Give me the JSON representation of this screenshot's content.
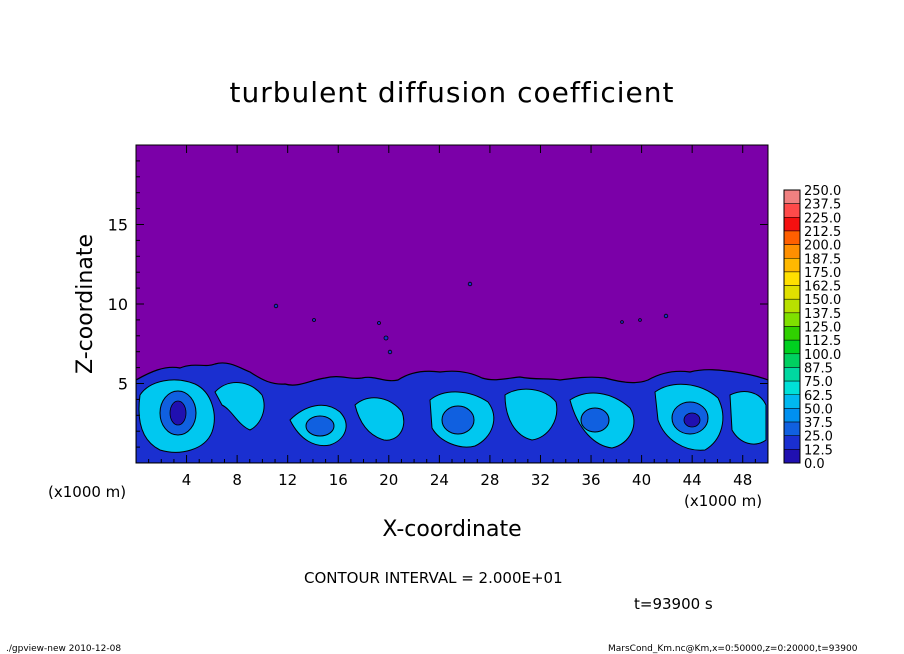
{
  "chart_data": {
    "type": "heatmap",
    "title": "turbulent diffusion coefficient",
    "xlabel": "X-coordinate",
    "ylabel": "Z-coordinate",
    "x_unit": "(x1000 m)",
    "x_unit_right": "(x1000 m)",
    "xlim": [
      0,
      50
    ],
    "ylim": [
      0,
      20
    ],
    "x_ticks": [
      "4",
      "8",
      "12",
      "16",
      "20",
      "24",
      "28",
      "32",
      "36",
      "40",
      "44",
      "48"
    ],
    "y_ticks": [
      "5",
      "10",
      "15"
    ],
    "x_tick_values": [
      4,
      8,
      12,
      16,
      20,
      24,
      28,
      32,
      36,
      40,
      44,
      48
    ],
    "y_tick_values": [
      5,
      10,
      15
    ],
    "colorbar": {
      "levels": [
        "250.0",
        "237.5",
        "225.0",
        "212.5",
        "200.0",
        "187.5",
        "175.0",
        "162.5",
        "150.0",
        "137.5",
        "125.0",
        "112.5",
        "100.0",
        "87.5",
        "75.0",
        "62.5",
        "50.0",
        "37.5",
        "25.0",
        "12.5",
        "0.0"
      ],
      "colors": [
        "#f08080",
        "#ff4a4a",
        "#f51010",
        "#ff5f00",
        "#ff8f00",
        "#ffb800",
        "#ffe000",
        "#e0e000",
        "#b8e000",
        "#80e000",
        "#30d000",
        "#00d020",
        "#00d060",
        "#00d8a0",
        "#00e0d8",
        "#00b8f0",
        "#0090f0",
        "#1060e0",
        "#1a2fd0",
        "#2010b0",
        "#7b00a8"
      ]
    },
    "contour_interval_label": "CONTOUR INTERVAL = 2.000E+01",
    "time_label": "t=93900 s",
    "footer_left": "./gpview-new  2010-12-08",
    "footer_right": "MarsCond_Km.nc@Km,x=0:50000,z=0:20000,t=93900",
    "field_top_z": 5.5
  }
}
